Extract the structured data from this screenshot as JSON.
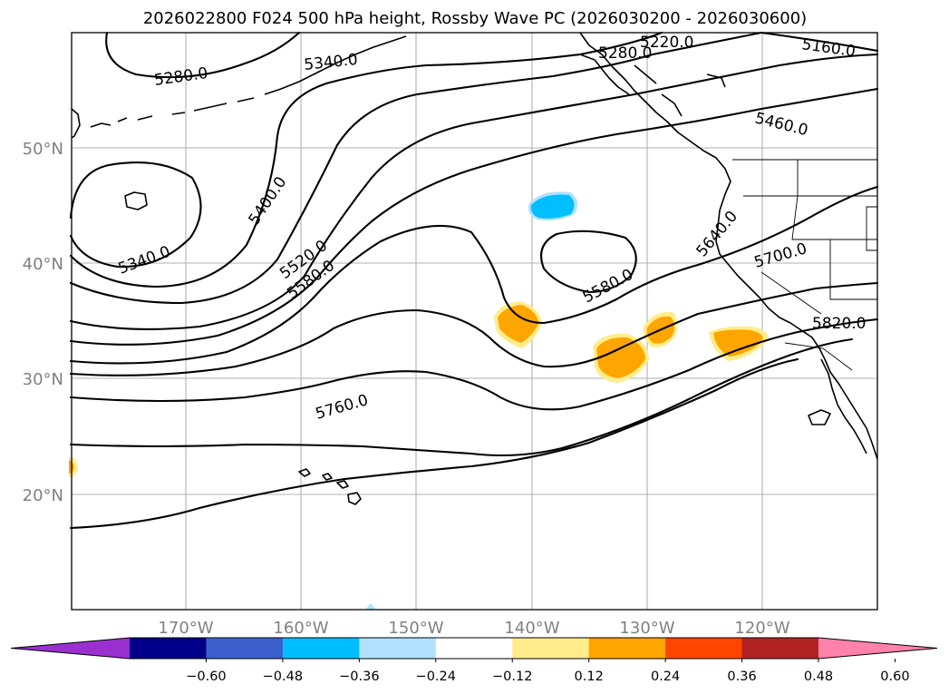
{
  "title": "2026022800 F024 500 hPa height, Rossby Wave PC (2026030200 - 2026030600)",
  "map": {
    "lat_labels": [
      "50°N",
      "40°N",
      "30°N",
      "20°N"
    ],
    "lon_labels": [
      "170°W",
      "160°W",
      "150°W",
      "140°W",
      "130°W",
      "120°W"
    ]
  },
  "contour_labels": [
    "5160.0",
    "5220.0",
    "5280.0",
    "5280.0",
    "5340.0",
    "5340.0",
    "5400.0",
    "5460.0",
    "5520.0",
    "5580.0",
    "5580.0",
    "5640.0",
    "5700.0",
    "5760.0",
    "5820.0"
  ],
  "colorbar": {
    "ticks": [
      "−0.60",
      "−0.48",
      "−0.36",
      "−0.24",
      "−0.12",
      "0.12",
      "0.24",
      "0.36",
      "0.48",
      "0.60"
    ],
    "colors": [
      "#9b30d0",
      "#00008b",
      "#3a5fcd",
      "#00bfff",
      "#b0e2ff",
      "#ffffff",
      "#ffec8b",
      "#ffa500",
      "#ff4500",
      "#b22222",
      "#ff82ab"
    ]
  }
}
